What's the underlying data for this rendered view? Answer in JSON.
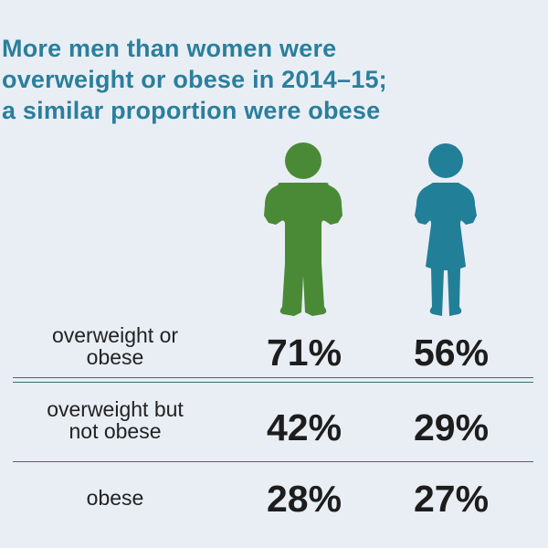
{
  "title_lines": [
    "More men than women were",
    "overweight or obese in 2014–15;",
    "a similar proportion were obese"
  ],
  "colors": {
    "title": "#2a7f9c",
    "men": "#4a8a36",
    "women": "#217f97",
    "background": "#e9eef5",
    "divider": "#3a6e69"
  },
  "chart_data": {
    "type": "table",
    "title": "More men than women were overweight or obese in 2014–15; a similar proportion were obese",
    "columns": [
      "men",
      "women"
    ],
    "column_icons": [
      "man-icon",
      "woman-icon"
    ],
    "rows": [
      {
        "label_lines": [
          "overweight or",
          "obese"
        ],
        "men": "71%",
        "women": "56%"
      },
      {
        "label_lines": [
          "overweight but",
          "not obese"
        ],
        "men": "42%",
        "women": "29%"
      },
      {
        "label_lines": [
          "obese"
        ],
        "men": "28%",
        "women": "27%"
      }
    ]
  }
}
